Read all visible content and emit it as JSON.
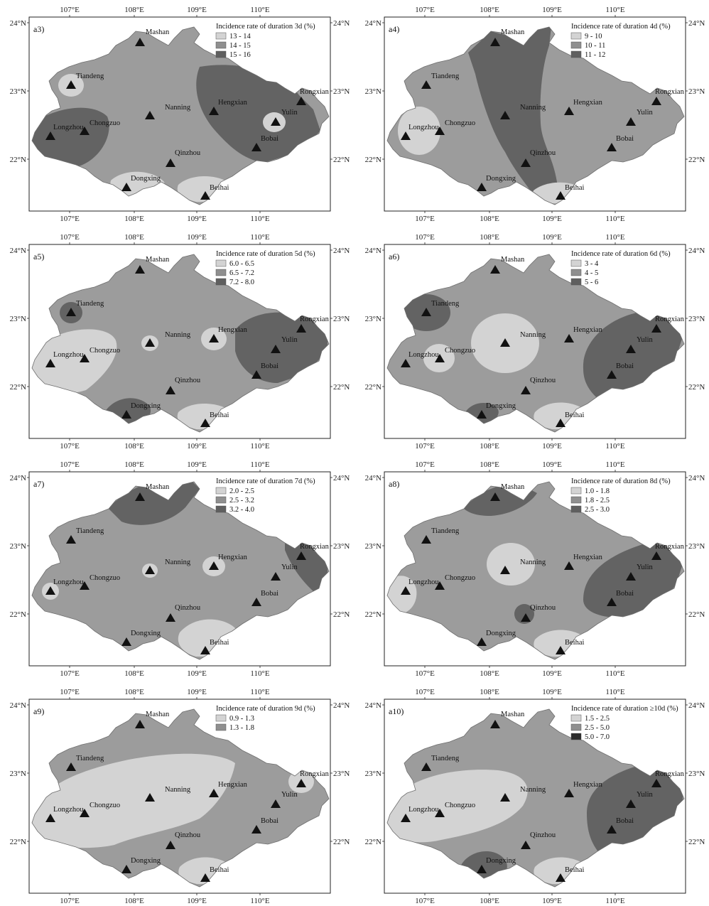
{
  "longitude_labels": [
    "107°E",
    "108°E",
    "109°E",
    "110°E"
  ],
  "latitude_labels": [
    "24°N",
    "23°N",
    "22°N"
  ],
  "stations": [
    "Mashan",
    "Tiandeng",
    "Nanning",
    "Hengxian",
    "Rongxian",
    "Yulin",
    "Longzhou",
    "Chongzuo",
    "Bobai",
    "Qinzhou",
    "Dongxing",
    "Beihai"
  ],
  "colors": {
    "light": "#d3d3d3",
    "mid": "#9c9c9c",
    "dark": "#636363",
    "darkest": "#2a2a2a",
    "legend_light": "#d3d3d3",
    "legend_mid": "#8f8f8f",
    "legend_dark": "#5f5f5f"
  },
  "panels": [
    {
      "id": "a3",
      "label": "a3)",
      "legend_title": "Incidence rate of duration 3d (%)",
      "legend": [
        {
          "range": "13 - 14",
          "shade": "light"
        },
        {
          "range": "14 - 15",
          "shade": "mid"
        },
        {
          "range": "15 - 16",
          "shade": "dark"
        }
      ]
    },
    {
      "id": "a4",
      "label": "a4)",
      "legend_title": "Incidence rate of duration 4d (%)",
      "legend": [
        {
          "range": "9 - 10",
          "shade": "light"
        },
        {
          "range": "10 - 11",
          "shade": "mid"
        },
        {
          "range": "11 - 12",
          "shade": "dark"
        }
      ]
    },
    {
      "id": "a5",
      "label": "a5)",
      "legend_title": "Incidence rate of duration 5d (%)",
      "legend": [
        {
          "range": "6.0 - 6.5",
          "shade": "light"
        },
        {
          "range": "6.5 - 7.2",
          "shade": "mid"
        },
        {
          "range": "7.2 - 8.0",
          "shade": "dark"
        }
      ]
    },
    {
      "id": "a6",
      "label": "a6)",
      "legend_title": "Incidence rate of duration 6d (%)",
      "legend": [
        {
          "range": "3 - 4",
          "shade": "light"
        },
        {
          "range": "4 - 5",
          "shade": "mid"
        },
        {
          "range": "5 - 6",
          "shade": "dark"
        }
      ]
    },
    {
      "id": "a7",
      "label": "a7)",
      "legend_title": "Incidence rate of duration 7d (%)",
      "legend": [
        {
          "range": "2.0 - 2.5",
          "shade": "light"
        },
        {
          "range": "2.5 - 3.2",
          "shade": "mid"
        },
        {
          "range": "3.2 - 4.0",
          "shade": "dark"
        }
      ]
    },
    {
      "id": "a8",
      "label": "a8)",
      "legend_title": "Incidence rate of duration 8d (%)",
      "legend": [
        {
          "range": "1.0 - 1.8",
          "shade": "light"
        },
        {
          "range": "1.8 - 2.5",
          "shade": "mid"
        },
        {
          "range": "2.5 - 3.0",
          "shade": "dark"
        }
      ]
    },
    {
      "id": "a9",
      "label": "a9)",
      "legend_title": "Incidence rate of duration 9d (%)",
      "legend": [
        {
          "range": "0.9 - 1.3",
          "shade": "light"
        },
        {
          "range": "1.3 - 1.8",
          "shade": "mid"
        }
      ]
    },
    {
      "id": "a10",
      "label": "a10)",
      "legend_title": "Incidence rate of duration ≥10d (%)",
      "legend": [
        {
          "range": "1.5 - 2.5",
          "shade": "light"
        },
        {
          "range": "2.5 - 5.0",
          "shade": "mid"
        },
        {
          "range": "5.0 - 7.0",
          "shade": "darkest"
        }
      ]
    }
  ]
}
